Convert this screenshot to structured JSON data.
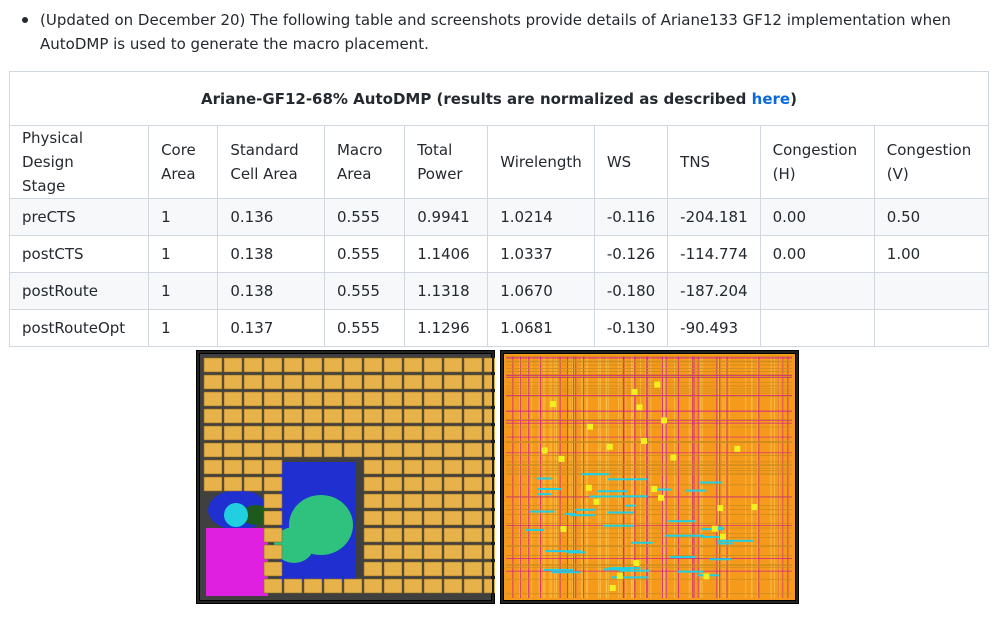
{
  "intro": {
    "text": "(Updated on December 20) The following table and screenshots provide details of Ariane133 GF12 implementation when AutoDMP is used to generate the macro placement."
  },
  "table": {
    "title_prefix": "Ariane-GF12-68% AutoDMP (results are normalized as described ",
    "title_link": "here",
    "title_suffix": ")",
    "headers": [
      [
        "Physical Design",
        "Stage"
      ],
      [
        "Core",
        "Area"
      ],
      [
        "Standard",
        "Cell Area"
      ],
      [
        "Macro",
        "Area"
      ],
      [
        "Total",
        "Power"
      ],
      [
        "Wirelength"
      ],
      [
        "WS"
      ],
      [
        "TNS"
      ],
      [
        "Congestion",
        "(H)"
      ],
      [
        "Congestion",
        "(V)"
      ]
    ],
    "rows": [
      [
        "preCTS",
        "1",
        "0.136",
        "0.555",
        "0.9941",
        "1.0214",
        "-0.116",
        "-204.181",
        "0.00",
        "0.50"
      ],
      [
        "postCTS",
        "1",
        "0.138",
        "0.555",
        "1.1406",
        "1.0337",
        "-0.126",
        "-114.774",
        "0.00",
        "1.00"
      ],
      [
        "postRoute",
        "1",
        "0.138",
        "0.555",
        "1.1318",
        "1.0670",
        "-0.180",
        "-187.204",
        "",
        ""
      ],
      [
        "postRouteOpt",
        "1",
        "0.137",
        "0.555",
        "1.1296",
        "1.0681",
        "-0.130",
        "-90.493",
        "",
        ""
      ]
    ]
  },
  "colors": {
    "link": "#0969da",
    "macro": "#e8b24a",
    "stdcell_blue": "#1f2fd0",
    "stdcell_magenta": "#e020e0",
    "stdcell_green": "#2ec27e",
    "stdcell_cyan": "#20d0e0",
    "route_orange": "#f59a1a",
    "route_magenta": "#d0208a"
  },
  "screenshots": [
    {
      "name": "placement-layout"
    },
    {
      "name": "routing-layout"
    }
  ]
}
